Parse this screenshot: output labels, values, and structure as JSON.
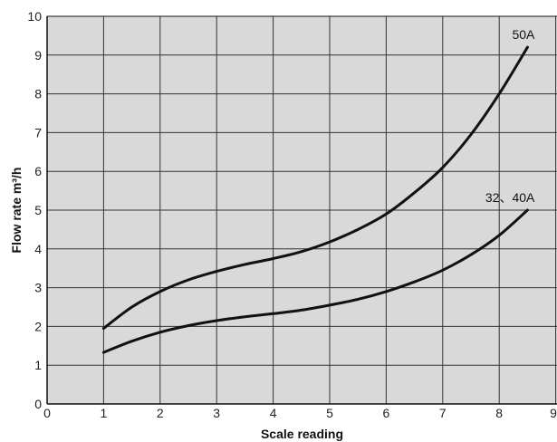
{
  "chart_data": {
    "type": "line",
    "xlabel": "Scale reading",
    "ylabel": "Flow rate m³/h",
    "xlim": [
      0,
      9
    ],
    "ylim": [
      0,
      10
    ],
    "x_ticks": [
      0,
      1,
      2,
      3,
      4,
      5,
      6,
      7,
      8,
      9
    ],
    "y_ticks": [
      0,
      1,
      2,
      3,
      4,
      5,
      6,
      7,
      8,
      9,
      10
    ],
    "grid": true,
    "plot_background": "#d9d9d9",
    "grid_color": "#333333",
    "line_color": "#111111",
    "series": [
      {
        "name": "50A",
        "points": [
          [
            1.0,
            1.95
          ],
          [
            1.5,
            2.5
          ],
          [
            2.0,
            2.9
          ],
          [
            2.5,
            3.2
          ],
          [
            3.0,
            3.42
          ],
          [
            3.5,
            3.6
          ],
          [
            4.0,
            3.75
          ],
          [
            4.5,
            3.93
          ],
          [
            5.0,
            4.18
          ],
          [
            5.5,
            4.5
          ],
          [
            6.0,
            4.9
          ],
          [
            6.5,
            5.45
          ],
          [
            7.0,
            6.1
          ],
          [
            7.5,
            6.95
          ],
          [
            8.0,
            8.0
          ],
          [
            8.5,
            9.2
          ]
        ]
      },
      {
        "name": "32、40A",
        "points": [
          [
            1.0,
            1.33
          ],
          [
            1.5,
            1.62
          ],
          [
            2.0,
            1.85
          ],
          [
            2.5,
            2.02
          ],
          [
            3.0,
            2.15
          ],
          [
            3.5,
            2.25
          ],
          [
            4.0,
            2.33
          ],
          [
            4.5,
            2.42
          ],
          [
            5.0,
            2.55
          ],
          [
            5.5,
            2.7
          ],
          [
            6.0,
            2.9
          ],
          [
            6.5,
            3.15
          ],
          [
            7.0,
            3.45
          ],
          [
            7.5,
            3.85
          ],
          [
            8.0,
            4.35
          ],
          [
            8.5,
            5.0
          ]
        ]
      }
    ]
  }
}
